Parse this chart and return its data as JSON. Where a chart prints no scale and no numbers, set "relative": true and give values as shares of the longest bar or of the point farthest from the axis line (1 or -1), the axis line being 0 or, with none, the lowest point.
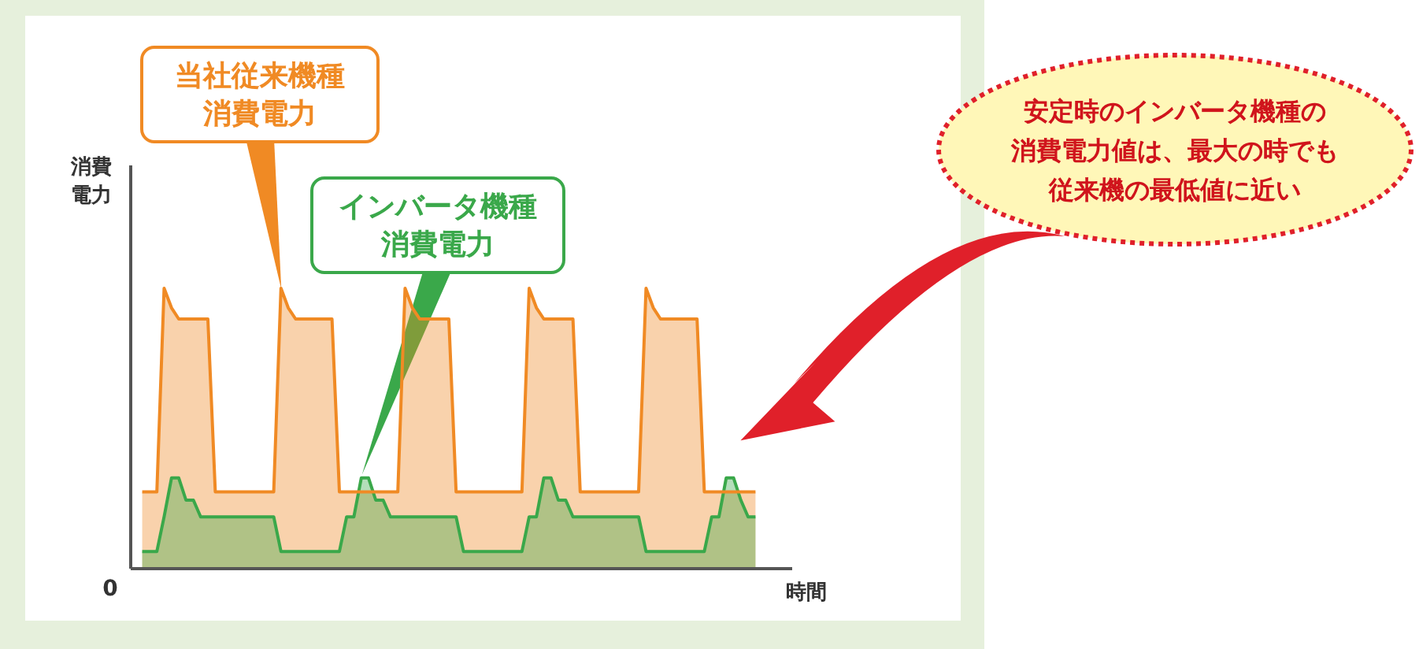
{
  "chart_data": {
    "type": "area",
    "relative": true,
    "xlabel": "時間",
    "ylabel": "消費電力",
    "categories": [
      null,
      null,
      null,
      null,
      null,
      null,
      null,
      null,
      null,
      null,
      null,
      null,
      null,
      null,
      null,
      null,
      null,
      null,
      null,
      null,
      null,
      null,
      null,
      null,
      null,
      null,
      null,
      null,
      null,
      null,
      null,
      null,
      null,
      null,
      null,
      null,
      null,
      null,
      null,
      null,
      null,
      null,
      null,
      null,
      null,
      null,
      null,
      null,
      null,
      null,
      null,
      null,
      null,
      null,
      null,
      null,
      null,
      null,
      null,
      null,
      null,
      null,
      null,
      null,
      null,
      null,
      null,
      null,
      null,
      null,
      null,
      null,
      null,
      null,
      null,
      null,
      null,
      null,
      null,
      null,
      null,
      null,
      null,
      null,
      null
    ],
    "series": [
      {
        "color": "#f08a24",
        "values": [
          0.27,
          0.27,
          0.27,
          1,
          0.93,
          0.89,
          0.89,
          0.89,
          0.89,
          0.89,
          0.27,
          0.27,
          0.27,
          0.27,
          0.27,
          0.27,
          0.27,
          0.27,
          0.27,
          1,
          0.93,
          0.89,
          0.89,
          0.89,
          0.89,
          0.89,
          0.89,
          0.27,
          0.27,
          0.27,
          0.27,
          0.27,
          0.27,
          0.27,
          0.27,
          0.27,
          1,
          0.93,
          0.89,
          0.89,
          0.89,
          0.89,
          0.89,
          0.27,
          0.27,
          0.27,
          0.27,
          0.27,
          0.27,
          0.27,
          0.27,
          0.27,
          0.27,
          1,
          0.93,
          0.89,
          0.89,
          0.89,
          0.89,
          0.89,
          0.27,
          0.27,
          0.27,
          0.27,
          0.27,
          0.27,
          0.27,
          0.27,
          0.27,
          1,
          0.93,
          0.89,
          0.89,
          0.89,
          0.89,
          0.89,
          0.89,
          0.27,
          0.27,
          0.27,
          0.27,
          0.27,
          0.27,
          0.27,
          0.27
        ]
      },
      {
        "color": "#3aa84a",
        "values": [
          0.056,
          0.056,
          0.056,
          0.18,
          0.32,
          0.32,
          0.24,
          0.24,
          0.18,
          0.18,
          0.18,
          0.18,
          0.18,
          0.18,
          0.18,
          0.18,
          0.18,
          0.18,
          0.18,
          0.056,
          0.056,
          0.056,
          0.056,
          0.056,
          0.056,
          0.056,
          0.056,
          0.056,
          0.18,
          0.18,
          0.32,
          0.32,
          0.24,
          0.24,
          0.18,
          0.18,
          0.18,
          0.18,
          0.18,
          0.18,
          0.18,
          0.18,
          0.18,
          0.18,
          0.056,
          0.056,
          0.056,
          0.056,
          0.056,
          0.056,
          0.056,
          0.056,
          0.056,
          0.18,
          0.18,
          0.32,
          0.32,
          0.24,
          0.24,
          0.18,
          0.18,
          0.18,
          0.18,
          0.18,
          0.18,
          0.18,
          0.18,
          0.18,
          0.18,
          0.056,
          0.056,
          0.056,
          0.056,
          0.056,
          0.056,
          0.056,
          0.056,
          0.056,
          0.18,
          0.18,
          0.32,
          0.32,
          0.24,
          0.18,
          0.18
        ]
      }
    ],
    "annotations": [
      "当社従来機種消費電力",
      "インバータ機種消費電力",
      "安定時のインバータ機種の消費電力値は、最大の時でも従来機の最低値に近い",
      "0"
    ]
  }
}
